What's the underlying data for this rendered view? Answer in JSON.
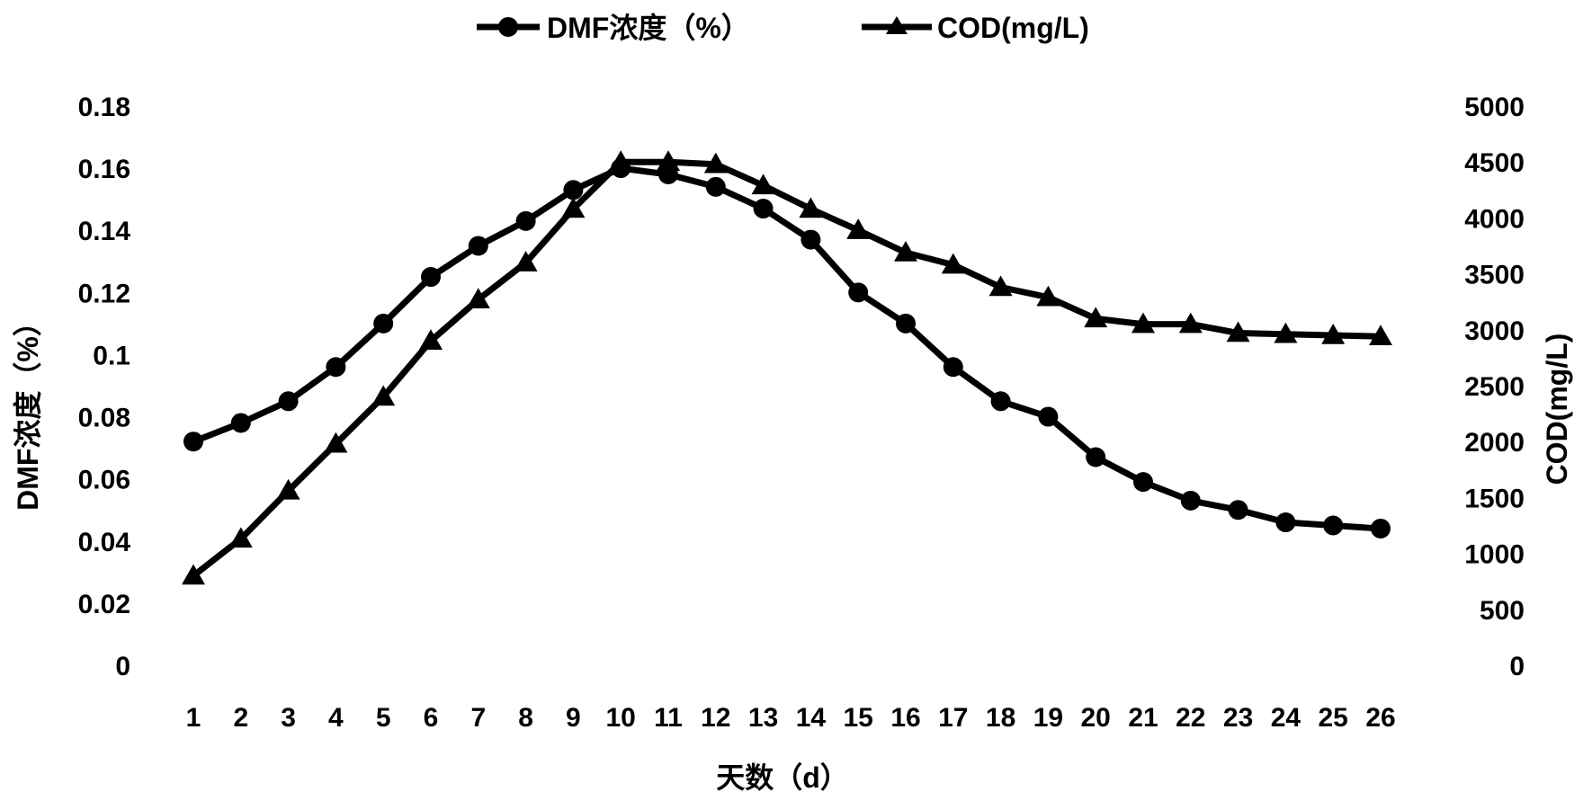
{
  "chart_data": {
    "type": "line",
    "x": [
      "1",
      "2",
      "3",
      "4",
      "5",
      "6",
      "7",
      "8",
      "9",
      "10",
      "11",
      "12",
      "13",
      "14",
      "15",
      "16",
      "17",
      "18",
      "19",
      "20",
      "21",
      "22",
      "23",
      "24",
      "25",
      "26"
    ],
    "xlabel": "天数（d）",
    "y_left": {
      "label": "DMF浓度（%）",
      "range": [
        0,
        0.18
      ],
      "ticks": [
        "0",
        "0.02",
        "0.04",
        "0.06",
        "0.08",
        "0.1",
        "0.12",
        "0.14",
        "0.16",
        "0.18"
      ]
    },
    "y_right": {
      "label": "COD(mg/L)",
      "range": [
        0,
        5000
      ],
      "ticks": [
        "0",
        "500",
        "1000",
        "1500",
        "2000",
        "2500",
        "3000",
        "3500",
        "4000",
        "4500",
        "5000"
      ]
    },
    "series": [
      {
        "name": "DMF浓度（%）",
        "axis": "left",
        "marker": "circle",
        "color": "#000000",
        "values": [
          0.072,
          0.078,
          0.085,
          0.096,
          0.11,
          0.125,
          0.135,
          0.143,
          0.153,
          0.16,
          0.158,
          0.154,
          0.147,
          0.137,
          0.12,
          0.11,
          0.096,
          0.085,
          0.08,
          0.067,
          0.059,
          0.053,
          0.05,
          0.046,
          0.045,
          0.044
        ]
      },
      {
        "name": "COD(mg/L)",
        "axis": "right",
        "marker": "triangle",
        "color": "#000000",
        "values": [
          800,
          1130,
          1560,
          1980,
          2400,
          2900,
          3270,
          3600,
          4080,
          4500,
          4500,
          4480,
          4290,
          4080,
          3890,
          3690,
          3580,
          3380,
          3290,
          3100,
          3050,
          3050,
          2970,
          2960,
          2950,
          2940
        ]
      }
    ],
    "legend": "top-center",
    "grid": false
  }
}
